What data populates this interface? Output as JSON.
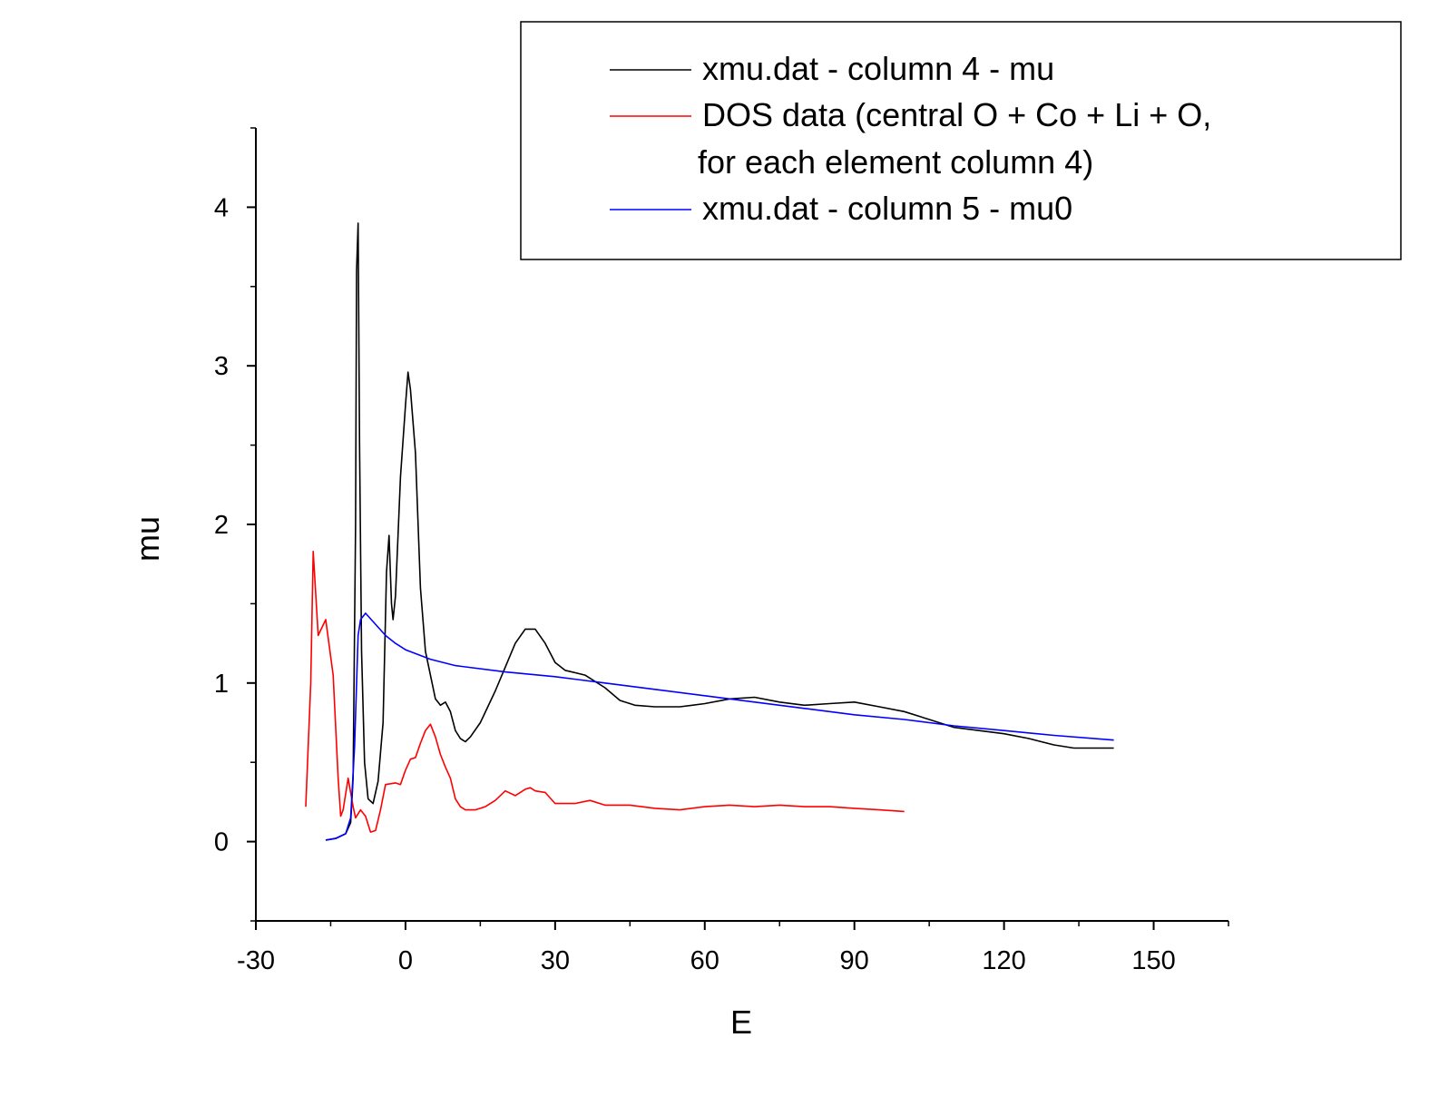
{
  "chart_data": {
    "type": "line",
    "title": "",
    "xlabel": "E",
    "ylabel": "mu",
    "xlim": [
      -30,
      165
    ],
    "ylim": [
      -0.5,
      4.5
    ],
    "x_ticks": [
      "-30",
      "0",
      "30",
      "60",
      "90",
      "120",
      "150"
    ],
    "y_ticks": [
      "0",
      "1",
      "2",
      "3",
      "4"
    ],
    "grid": false,
    "legend_position": "top-right",
    "legend": [
      {
        "label": "xmu.dat - column 4 - mu",
        "color": "#000000"
      },
      {
        "label": "DOS data (central O + Co + Li + O,",
        "label_line2": "for each element column 4)",
        "color": "#ff0000"
      },
      {
        "label": "xmu.dat - column 5 - mu0",
        "color": "#0000ff"
      }
    ],
    "series": [
      {
        "name": "xmu.dat - column 4 - mu",
        "color": "#000000",
        "points": [
          [
            -16,
            0.01
          ],
          [
            -14,
            0.02
          ],
          [
            -12,
            0.05
          ],
          [
            -11,
            0.12
          ],
          [
            -10.5,
            0.4
          ],
          [
            -10,
            2.0
          ],
          [
            -9.8,
            3.6
          ],
          [
            -9.5,
            3.9
          ],
          [
            -9.2,
            2.5
          ],
          [
            -8.8,
            1.2
          ],
          [
            -8.2,
            0.5
          ],
          [
            -7.5,
            0.27
          ],
          [
            -6.5,
            0.24
          ],
          [
            -5.5,
            0.38
          ],
          [
            -4.5,
            0.75
          ],
          [
            -3.8,
            1.7
          ],
          [
            -3.3,
            1.93
          ],
          [
            -2.8,
            1.5
          ],
          [
            -2.5,
            1.4
          ],
          [
            -2,
            1.55
          ],
          [
            -1,
            2.3
          ],
          [
            0,
            2.75
          ],
          [
            0.5,
            2.96
          ],
          [
            1,
            2.85
          ],
          [
            2,
            2.45
          ],
          [
            3,
            1.6
          ],
          [
            4,
            1.2
          ],
          [
            5,
            1.05
          ],
          [
            6,
            0.9
          ],
          [
            7,
            0.86
          ],
          [
            8,
            0.88
          ],
          [
            9,
            0.82
          ],
          [
            10,
            0.7
          ],
          [
            11,
            0.65
          ],
          [
            12,
            0.63
          ],
          [
            13,
            0.66
          ],
          [
            15,
            0.75
          ],
          [
            18,
            0.95
          ],
          [
            20,
            1.1
          ],
          [
            22,
            1.25
          ],
          [
            24,
            1.34
          ],
          [
            26,
            1.34
          ],
          [
            28,
            1.25
          ],
          [
            30,
            1.13
          ],
          [
            32,
            1.08
          ],
          [
            36,
            1.05
          ],
          [
            40,
            0.97
          ],
          [
            43,
            0.89
          ],
          [
            46,
            0.86
          ],
          [
            50,
            0.85
          ],
          [
            55,
            0.85
          ],
          [
            60,
            0.87
          ],
          [
            65,
            0.9
          ],
          [
            70,
            0.91
          ],
          [
            75,
            0.88
          ],
          [
            80,
            0.86
          ],
          [
            85,
            0.87
          ],
          [
            90,
            0.88
          ],
          [
            95,
            0.85
          ],
          [
            100,
            0.82
          ],
          [
            105,
            0.77
          ],
          [
            110,
            0.72
          ],
          [
            115,
            0.7
          ],
          [
            120,
            0.68
          ],
          [
            125,
            0.65
          ],
          [
            130,
            0.61
          ],
          [
            134,
            0.59
          ],
          [
            138,
            0.59
          ],
          [
            142,
            0.59
          ]
        ]
      },
      {
        "name": "DOS data (central O + Co + Li + O, for each element column 4)",
        "color": "#ff0000",
        "points": [
          [
            -20,
            0.22
          ],
          [
            -19,
            1.0
          ],
          [
            -18.5,
            1.83
          ],
          [
            -17.5,
            1.3
          ],
          [
            -16,
            1.4
          ],
          [
            -14.5,
            1.05
          ],
          [
            -13.5,
            0.4
          ],
          [
            -13,
            0.16
          ],
          [
            -12.5,
            0.2
          ],
          [
            -11.5,
            0.4
          ],
          [
            -10.5,
            0.22
          ],
          [
            -10,
            0.15
          ],
          [
            -9,
            0.2
          ],
          [
            -8,
            0.16
          ],
          [
            -7,
            0.06
          ],
          [
            -6,
            0.07
          ],
          [
            -5,
            0.2
          ],
          [
            -4,
            0.36
          ],
          [
            -2,
            0.37
          ],
          [
            -1,
            0.36
          ],
          [
            0,
            0.45
          ],
          [
            1,
            0.52
          ],
          [
            2,
            0.53
          ],
          [
            3,
            0.62
          ],
          [
            4,
            0.7
          ],
          [
            5,
            0.74
          ],
          [
            6,
            0.66
          ],
          [
            7,
            0.55
          ],
          [
            8,
            0.47
          ],
          [
            9,
            0.4
          ],
          [
            10,
            0.27
          ],
          [
            11,
            0.22
          ],
          [
            12,
            0.2
          ],
          [
            14,
            0.2
          ],
          [
            16,
            0.22
          ],
          [
            18,
            0.26
          ],
          [
            20,
            0.32
          ],
          [
            22,
            0.29
          ],
          [
            24,
            0.33
          ],
          [
            25,
            0.34
          ],
          [
            26,
            0.32
          ],
          [
            28,
            0.31
          ],
          [
            30,
            0.24
          ],
          [
            34,
            0.24
          ],
          [
            37,
            0.26
          ],
          [
            40,
            0.23
          ],
          [
            45,
            0.23
          ],
          [
            50,
            0.21
          ],
          [
            55,
            0.2
          ],
          [
            60,
            0.22
          ],
          [
            65,
            0.23
          ],
          [
            70,
            0.22
          ],
          [
            75,
            0.23
          ],
          [
            80,
            0.22
          ],
          [
            85,
            0.22
          ],
          [
            90,
            0.21
          ],
          [
            95,
            0.2
          ],
          [
            100,
            0.19
          ]
        ]
      },
      {
        "name": "xmu.dat - column 5 - mu0",
        "color": "#0000ff",
        "points": [
          [
            -16,
            0.01
          ],
          [
            -14,
            0.02
          ],
          [
            -12,
            0.05
          ],
          [
            -11,
            0.15
          ],
          [
            -10.2,
            0.6
          ],
          [
            -9.5,
            1.3
          ],
          [
            -9,
            1.4
          ],
          [
            -8,
            1.44
          ],
          [
            -6,
            1.37
          ],
          [
            -4,
            1.3
          ],
          [
            -2,
            1.25
          ],
          [
            0,
            1.21
          ],
          [
            5,
            1.15
          ],
          [
            10,
            1.11
          ],
          [
            20,
            1.07
          ],
          [
            30,
            1.04
          ],
          [
            40,
            1.0
          ],
          [
            50,
            0.96
          ],
          [
            60,
            0.92
          ],
          [
            70,
            0.88
          ],
          [
            80,
            0.84
          ],
          [
            90,
            0.8
          ],
          [
            100,
            0.77
          ],
          [
            110,
            0.73
          ],
          [
            120,
            0.7
          ],
          [
            130,
            0.67
          ],
          [
            142,
            0.64
          ]
        ]
      }
    ]
  }
}
